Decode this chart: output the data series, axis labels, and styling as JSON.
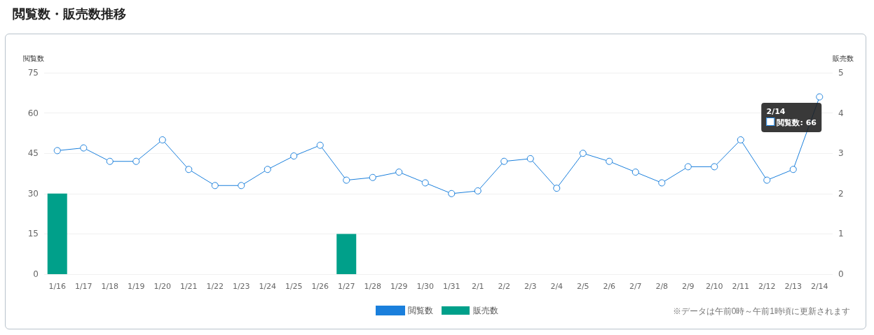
{
  "chart_data": {
    "type": "bar",
    "title": "閲覧数・販売数推移",
    "ylabel": "閲覧数",
    "y2label": "販売数",
    "categories": [
      "1/16",
      "1/17",
      "1/18",
      "1/19",
      "1/20",
      "1/21",
      "1/22",
      "1/23",
      "1/24",
      "1/25",
      "1/26",
      "1/27",
      "1/28",
      "1/29",
      "1/30",
      "1/31",
      "2/1",
      "2/2",
      "2/3",
      "2/4",
      "2/5",
      "2/6",
      "2/7",
      "2/8",
      "2/9",
      "2/10",
      "2/11",
      "2/12",
      "2/13",
      "2/14"
    ],
    "series": [
      {
        "name": "閲覧数",
        "type": "line",
        "color": "#1a7fdc",
        "values": [
          46,
          47,
          42,
          42,
          50,
          39,
          33,
          33,
          39,
          44,
          48,
          35,
          36,
          38,
          34,
          30,
          31,
          42,
          43,
          32,
          45,
          42,
          38,
          34,
          40,
          40,
          50,
          35,
          39,
          66
        ]
      },
      {
        "name": "販売数",
        "axis": "y2",
        "color": "#00a08a",
        "values": [
          2,
          0,
          0,
          0,
          0,
          0,
          0,
          0,
          0,
          0,
          0,
          1,
          0,
          0,
          0,
          0,
          0,
          0,
          0,
          0,
          0,
          0,
          0,
          0,
          0,
          0,
          0,
          0,
          0,
          0
        ]
      }
    ],
    "ylim": [
      0,
      75
    ],
    "yticks": [
      0,
      15,
      30,
      45,
      60,
      75
    ],
    "y2lim": [
      0,
      5
    ],
    "y2ticks": [
      0,
      1,
      2,
      3,
      4,
      5
    ],
    "grid": "y",
    "legend": "bottom",
    "marker": "circle",
    "annotations": [
      "※データは午前0時～午前1時頃に更新されます",
      {
        "text": "2/14\n閲覧数: 66",
        "x": "2/14",
        "y": 66
      }
    ]
  }
}
